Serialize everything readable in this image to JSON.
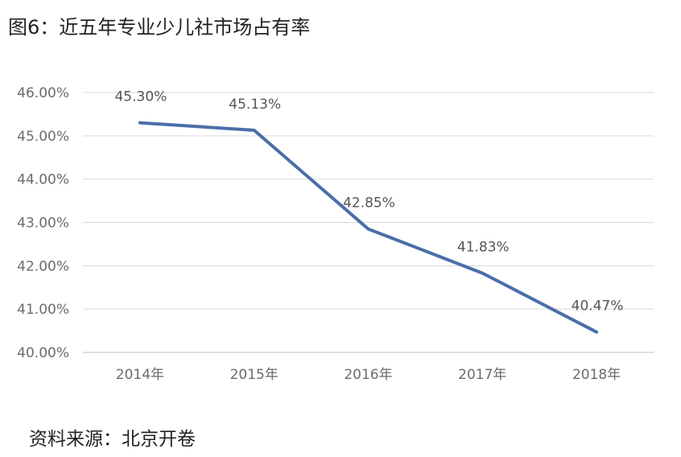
{
  "header": {
    "title": "图6：近五年专业少儿社市场占有率"
  },
  "footer": {
    "source": "资料来源：北京开卷"
  },
  "chart_data": {
    "type": "line",
    "title": "图6：近五年专业少儿社市场占有率",
    "xlabel": "",
    "ylabel": "",
    "categories": [
      "2014年",
      "2015年",
      "2016年",
      "2017年",
      "2018年"
    ],
    "series": [
      {
        "values": [
          45.3,
          45.13,
          42.85,
          41.83,
          40.47
        ]
      }
    ],
    "data_labels": [
      "45.30%",
      "45.13%",
      "42.85%",
      "41.83%",
      "40.47%"
    ],
    "y_ticks": [
      "40.00%",
      "41.00%",
      "42.00%",
      "43.00%",
      "44.00%",
      "45.00%",
      "46.00%"
    ],
    "ylim": [
      40,
      46
    ],
    "grid": true,
    "legend": "none",
    "colors": {
      "line": "#4a6ea9",
      "grid": "#d9d9d9",
      "axis": "#bfbfbf"
    }
  }
}
